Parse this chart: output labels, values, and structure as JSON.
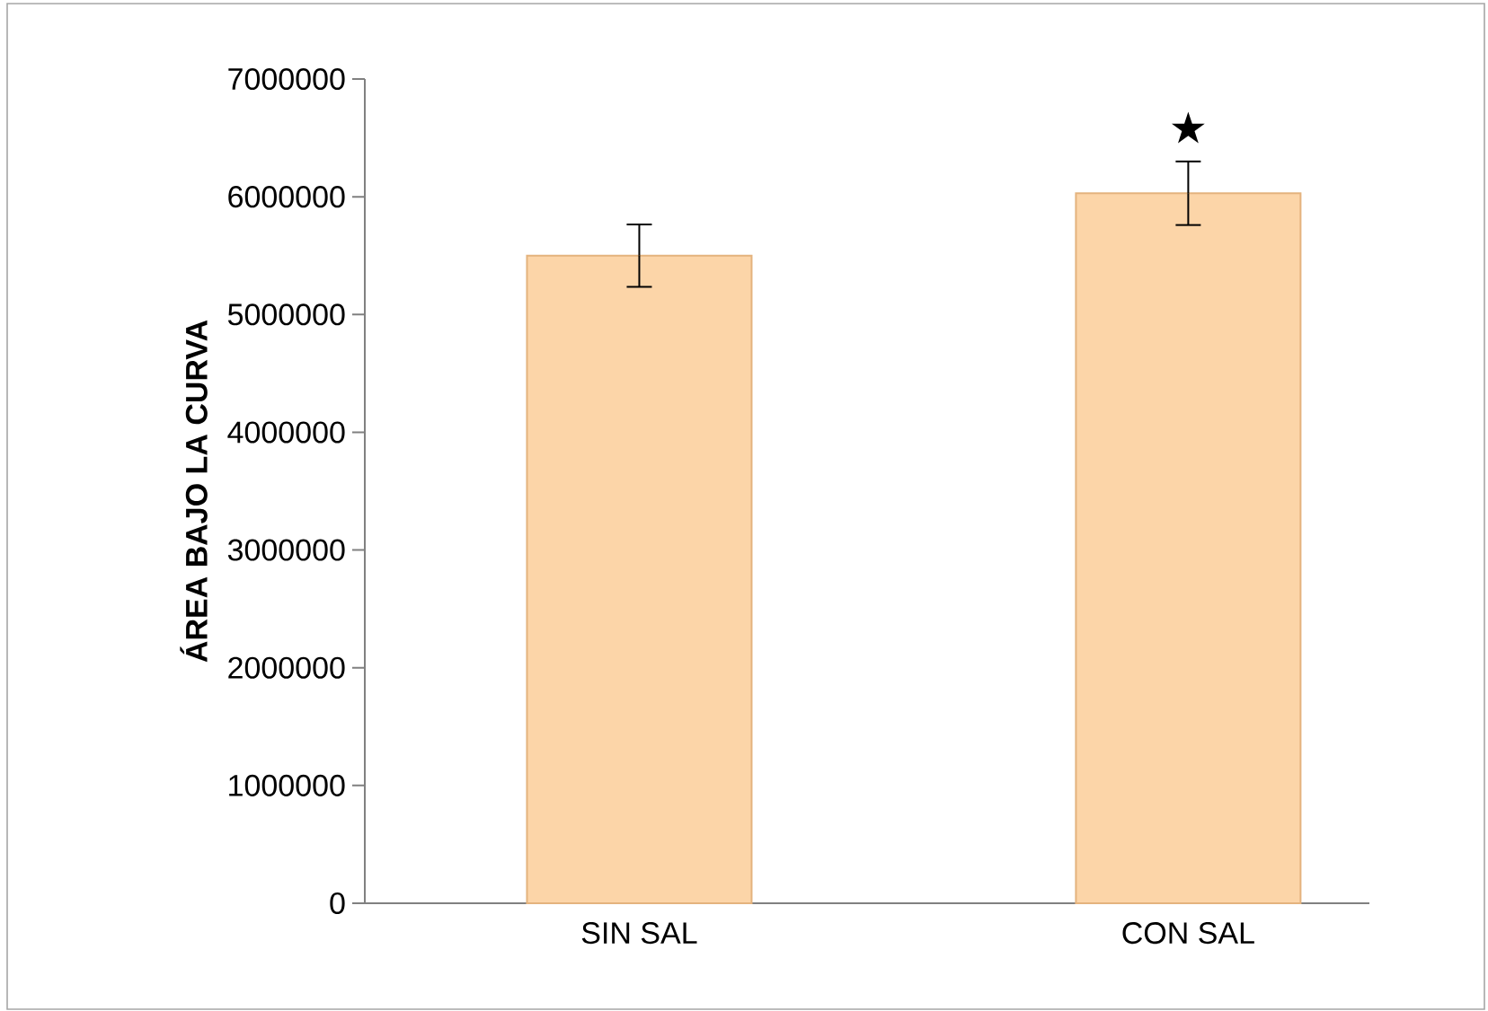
{
  "chart_data": {
    "type": "bar",
    "ylabel": "ÁREA BAJO LA CURVA",
    "categories": [
      "SIN SAL",
      "CON SAL"
    ],
    "values": [
      5500000,
      6030000
    ],
    "errors": [
      265000,
      270000
    ],
    "color": "#fcd5a8",
    "ylim": [
      0,
      7000000
    ],
    "yticks": [
      0,
      1000000,
      2000000,
      3000000,
      4000000,
      5000000,
      6000000,
      7000000
    ],
    "grid": false,
    "annotations": [
      "★"
    ]
  }
}
